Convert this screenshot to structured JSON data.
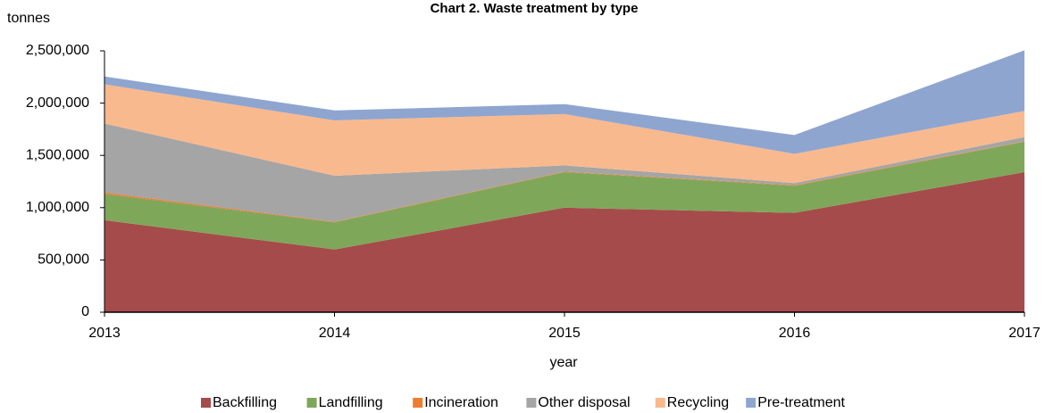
{
  "chart_data": {
    "type": "stacked_area",
    "title": "Chart 2. Waste treatment by type",
    "y_label": "tonnes",
    "x_label": "year",
    "categories": [
      "2013",
      "2014",
      "2015",
      "2016",
      "2017"
    ],
    "series": [
      {
        "name": "Backfilling",
        "color": "#a64b4b",
        "values": [
          880000,
          600000,
          1000000,
          950000,
          1340000
        ]
      },
      {
        "name": "Landfilling",
        "color": "#7fa75a",
        "values": [
          250000,
          260000,
          340000,
          260000,
          290000
        ]
      },
      {
        "name": "Incineration",
        "color": "#ed7d31",
        "values": [
          15000,
          5000,
          5000,
          5000,
          5000
        ]
      },
      {
        "name": "Other disposal",
        "color": "#a5a5a5",
        "values": [
          660000,
          440000,
          60000,
          20000,
          40000
        ]
      },
      {
        "name": "Recycling",
        "color": "#f9b98e",
        "values": [
          375000,
          530000,
          490000,
          280000,
          250000
        ]
      },
      {
        "name": "Pre-treatment",
        "color": "#8ea5d0",
        "values": [
          75000,
          95000,
          95000,
          180000,
          580000
        ]
      }
    ],
    "ylim": [
      0,
      2500000
    ],
    "yticks": [
      0,
      {
        "value": 500000,
        "label": "500,000"
      },
      {
        "value": 1000000,
        "label": "1,000,000"
      },
      {
        "value": 1500000,
        "label": "1,500,000"
      },
      {
        "value": 2000000,
        "label": "2,000,000"
      },
      {
        "value": 2500000,
        "label": "2,500,000"
      }
    ],
    "legend": "bottom"
  }
}
